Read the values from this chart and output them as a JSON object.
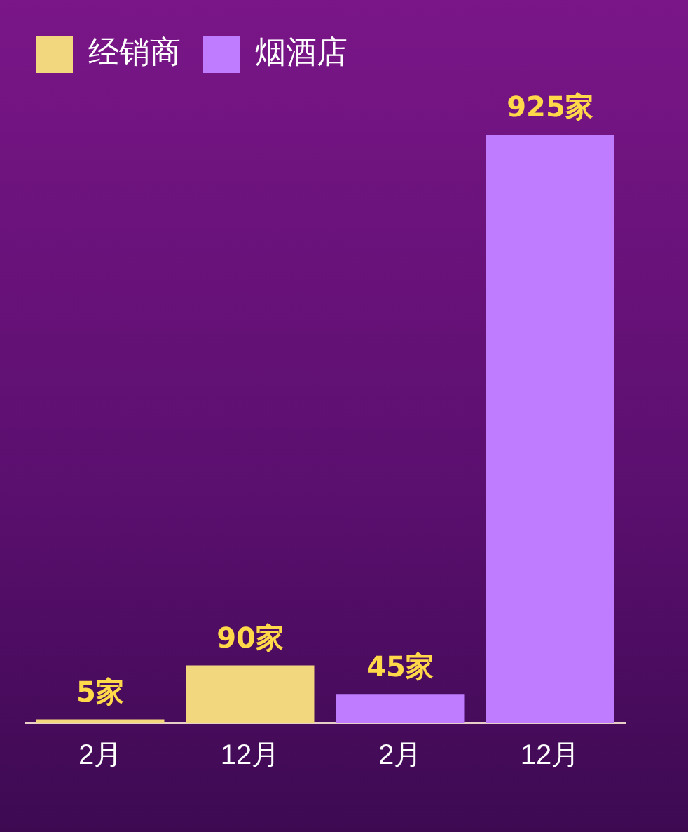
{
  "chart_data": {
    "type": "bar",
    "categories": [
      "2月",
      "12月",
      "2月",
      "12月"
    ],
    "series": [
      {
        "name": "经销商",
        "color": "#f3d77e",
        "values": [
          5,
          90,
          null,
          null
        ],
        "value_labels": [
          "5家",
          "90家",
          null,
          null
        ]
      },
      {
        "name": "烟酒店",
        "color": "#c07cff",
        "values": [
          null,
          null,
          45,
          925
        ],
        "value_labels": [
          null,
          null,
          "45家",
          "925家"
        ]
      }
    ],
    "legend": "top left",
    "grid": false
  }
}
